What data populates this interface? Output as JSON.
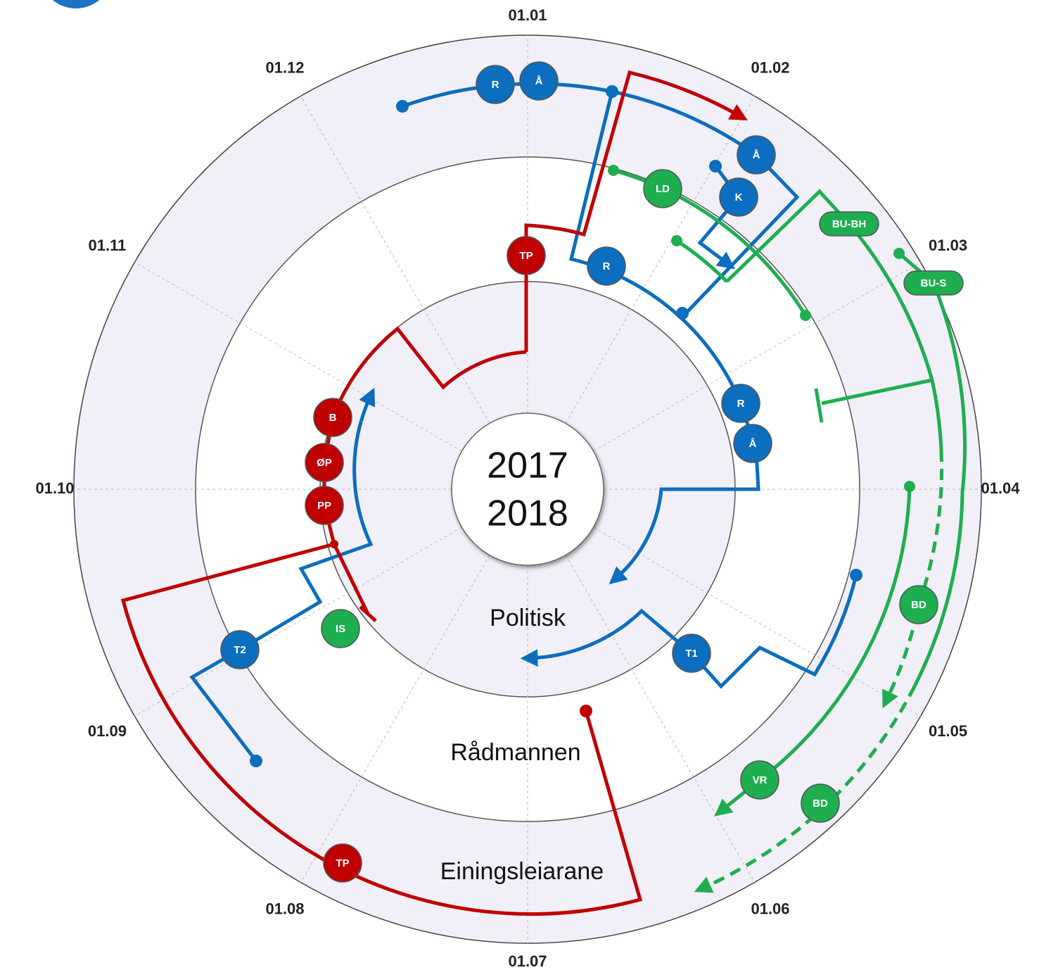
{
  "months": [
    "01.01",
    "01.02",
    "01.03",
    "01.04",
    "01.05",
    "01.06",
    "01.07",
    "01.08",
    "01.09",
    "01.10",
    "01.11",
    "01.12"
  ],
  "center": {
    "years": [
      "2017",
      "2018"
    ]
  },
  "rings": [
    "Politisk",
    "Rådmannen",
    "Einingsleiarane"
  ],
  "nodes": [
    "R",
    "Å",
    "Å",
    "K",
    "R",
    "R",
    "Å",
    "T1",
    "T2",
    "TP",
    "B",
    "ØP",
    "PP",
    "TP",
    "LD",
    "IS",
    "BD",
    "VR",
    "BD",
    "BU-BH",
    "BU-S"
  ]
}
